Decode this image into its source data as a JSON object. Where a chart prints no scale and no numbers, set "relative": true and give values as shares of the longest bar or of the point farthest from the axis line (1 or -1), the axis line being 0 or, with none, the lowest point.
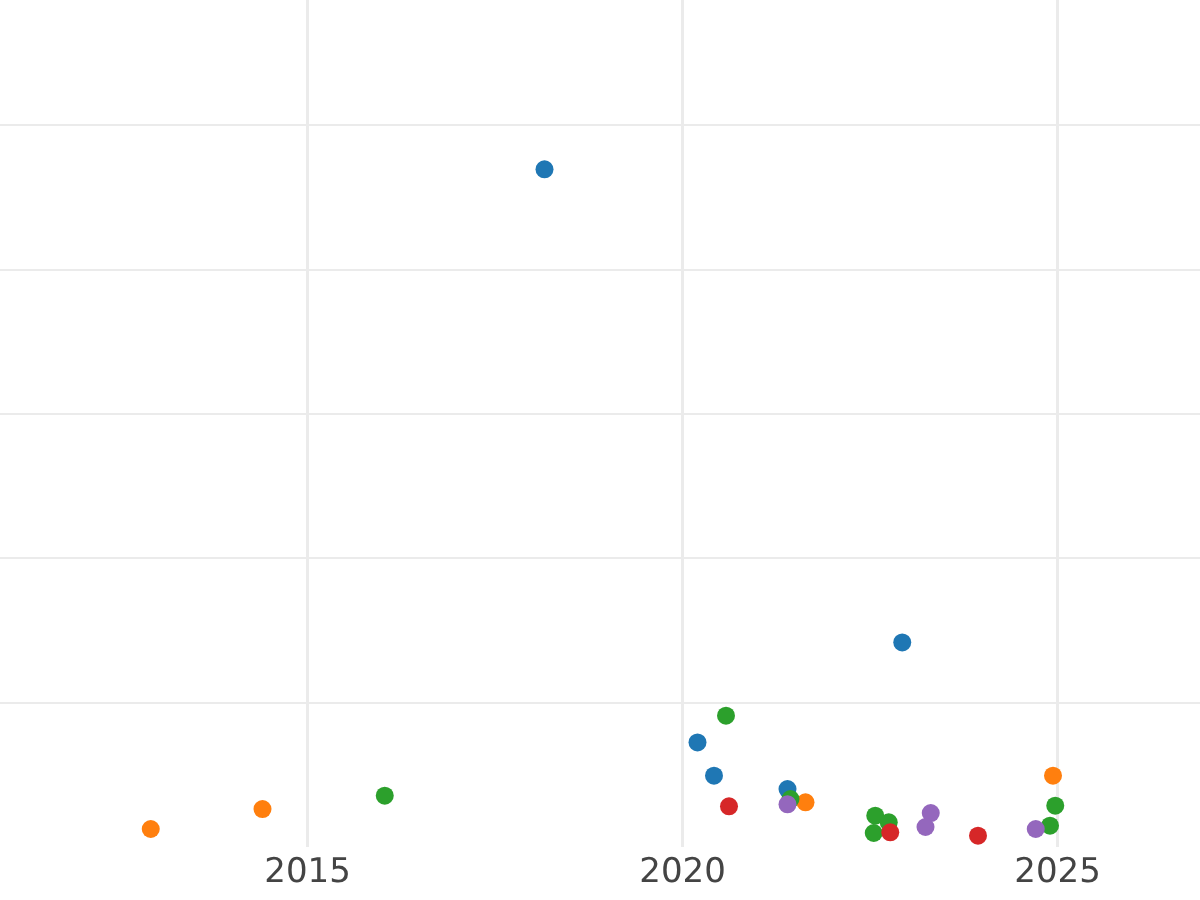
{
  "chart_data": {
    "type": "scatter",
    "relative": true,
    "xlim": [
      2010.9,
      2026.9
    ],
    "xticks": [
      2015,
      2020,
      2025
    ],
    "grid": true,
    "marker": "circle",
    "tick_labels": "x",
    "series": [
      {
        "color": "#1f77b4",
        "x": [
          2018.16,
          2022.93,
          2020.2,
          2020.42,
          2021.4
        ],
        "values": [
          1,
          0.29,
          0.14,
          0.09,
          0.07
        ]
      },
      {
        "color": "#ff7f0e",
        "x": [
          2012.91,
          2014.4,
          2021.64,
          2024.94
        ],
        "values": [
          0.01,
          0.04,
          0.05,
          0.09
        ]
      },
      {
        "color": "#2ca02c",
        "x": [
          2016.03,
          2020.58,
          2021.44,
          2022.57,
          2022.75,
          2022.55,
          2024.97,
          2024.9
        ],
        "values": [
          0.06,
          0.18,
          0.055,
          0.03,
          0.02,
          0.004,
          0.045,
          0.015
        ]
      },
      {
        "color": "#d62728",
        "x": [
          2020.62,
          2022.77,
          2023.94
        ],
        "values": [
          0.044,
          0.005,
          0
        ]
      },
      {
        "color": "#9467bd",
        "x": [
          2021.4,
          2023.31,
          2023.24,
          2024.71
        ],
        "values": [
          0.047,
          0.034,
          0.013,
          0.01
        ]
      }
    ]
  }
}
